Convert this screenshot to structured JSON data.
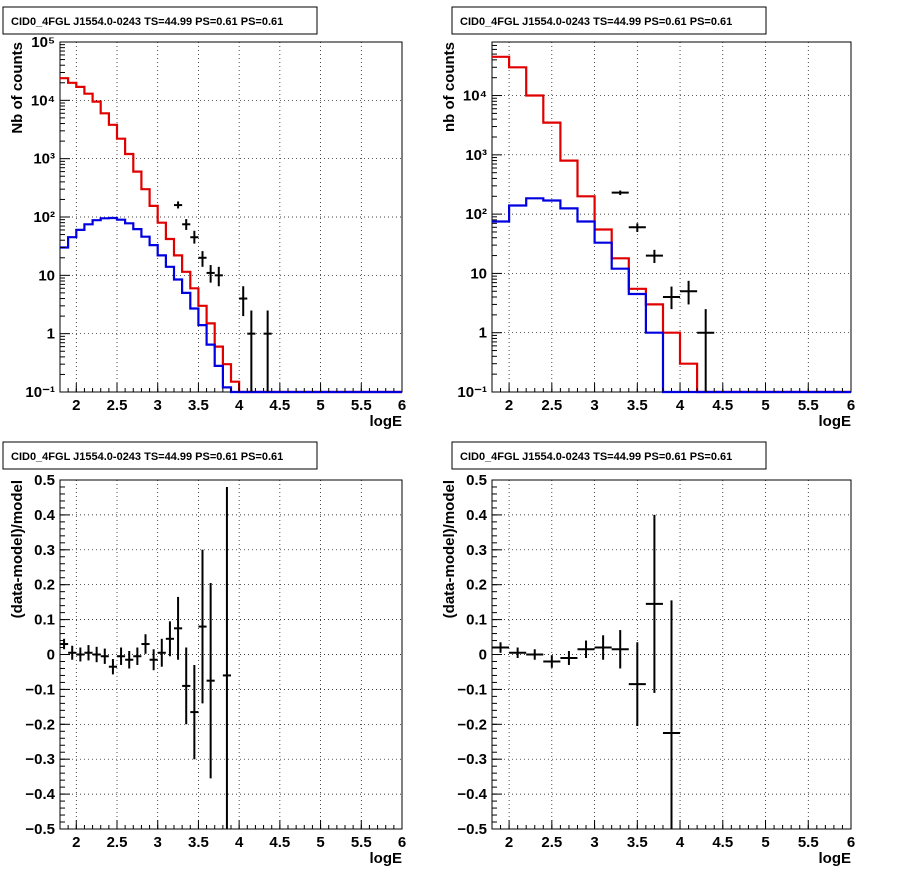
{
  "chart_data": [
    {
      "type": "histogram",
      "title": "CID0_4FGL J1554.0-0243 TS=44.99 PS=0.61 PS=0.61",
      "xlabel": "logE",
      "ylabel": "Nb of counts",
      "xlim": [
        1.8,
        6.0
      ],
      "ylim": [
        0.1,
        100000
      ],
      "yscale": "log",
      "grid": true,
      "x_ticks": [
        "2",
        "2.5",
        "3",
        "3.5",
        "4",
        "4.5",
        "5",
        "5.5",
        "6"
      ],
      "y_ticks": [
        "10⁻¹",
        "1",
        "10",
        "10²",
        "10³",
        "10⁴",
        "10⁵"
      ],
      "bin_edges": [
        1.8,
        1.9,
        2.0,
        2.1,
        2.2,
        2.3,
        2.4,
        2.5,
        2.6,
        2.7,
        2.8,
        2.9,
        3.0,
        3.1,
        3.2,
        3.3,
        3.4,
        3.5,
        3.6,
        3.7,
        3.8,
        3.9,
        4.0,
        4.1,
        4.2,
        4.3,
        4.4,
        4.5,
        4.6,
        4.7,
        4.8,
        4.9,
        5.0,
        5.1,
        5.2,
        5.3,
        5.4,
        5.5,
        5.6,
        5.7,
        5.8,
        5.9,
        6.0
      ],
      "series": [
        {
          "color": "#e00000",
          "values": [
            24000,
            20000,
            17000,
            13000,
            9500,
            6000,
            3800,
            2200,
            1200,
            600,
            300,
            155,
            80,
            42,
            22,
            11.5,
            6,
            3,
            1.5,
            0.6,
            0.3,
            0.15,
            0.1,
            0.1,
            0.1,
            0.1,
            0.1,
            0.1,
            0.1,
            0.1,
            0.1,
            0.1,
            0.1,
            0.1,
            0.1,
            0.1,
            0.1,
            0.1,
            0.1,
            0.1,
            0.1,
            0.1
          ]
        },
        {
          "color": "#0000e0",
          "values": [
            30,
            45,
            60,
            75,
            88,
            95,
            96,
            90,
            78,
            62,
            46,
            33,
            22,
            14,
            8.5,
            5,
            2.7,
            1.4,
            0.65,
            0.28,
            0.12,
            0.06,
            0.1,
            0.1,
            0.1,
            0.1,
            0.1,
            0.1,
            0.1,
            0.1,
            0.1,
            0.1,
            0.1,
            0.1,
            0.1,
            0.1,
            0.1,
            0.1,
            0.1,
            0.1,
            0.1,
            0.1
          ]
        }
      ],
      "data_points": [
        {
          "x": 3.25,
          "y": 160,
          "ylo": 140,
          "yhi": 185
        },
        {
          "x": 3.35,
          "y": 75,
          "ylo": 60,
          "yhi": 92
        },
        {
          "x": 3.45,
          "y": 45,
          "ylo": 35,
          "yhi": 58
        },
        {
          "x": 3.55,
          "y": 20,
          "ylo": 14,
          "yhi": 26
        },
        {
          "x": 3.65,
          "y": 11,
          "ylo": 7.5,
          "yhi": 15
        },
        {
          "x": 3.75,
          "y": 10,
          "ylo": 6.5,
          "yhi": 14
        },
        {
          "x": 4.05,
          "y": 4,
          "ylo": 2,
          "yhi": 6.5
        },
        {
          "x": 4.15,
          "y": 1,
          "ylo": 0.1,
          "yhi": 2.5
        },
        {
          "x": 4.35,
          "y": 1,
          "ylo": 0.1,
          "yhi": 2.5
        }
      ]
    },
    {
      "type": "histogram",
      "title": "CID0_4FGL J1554.0-0243 TS=44.99 PS=0.61 PS=0.61",
      "xlabel": "logE",
      "ylabel": "nb of counts",
      "xlim": [
        1.8,
        6.0
      ],
      "ylim": [
        0.1,
        80000
      ],
      "yscale": "log",
      "grid": true,
      "x_ticks": [
        "2",
        "2.5",
        "3",
        "3.5",
        "4",
        "4.5",
        "5",
        "5.5",
        "6"
      ],
      "y_ticks": [
        "10⁻¹",
        "1",
        "10",
        "10²",
        "10³",
        "10⁴"
      ],
      "bin_edges": [
        1.8,
        2.0,
        2.2,
        2.4,
        2.6,
        2.8,
        3.0,
        3.2,
        3.4,
        3.6,
        3.8,
        4.0,
        4.2,
        4.4,
        4.6,
        4.8,
        5.0,
        5.2,
        5.4,
        5.6,
        5.8,
        6.0
      ],
      "series": [
        {
          "color": "#e00000",
          "values": [
            45000,
            30000,
            10000,
            3500,
            800,
            200,
            55,
            18,
            5.5,
            3,
            1,
            0.3,
            0.1,
            0.1,
            0.1,
            0.1,
            0.1,
            0.1,
            0.1,
            0.1,
            0.1
          ]
        },
        {
          "color": "#0000e0",
          "values": [
            75,
            140,
            185,
            170,
            125,
            75,
            33,
            12,
            4.5,
            1.0,
            0.1,
            0.1,
            0.1,
            0.1,
            0.1,
            0.1,
            0.1,
            0.1,
            0.1,
            0.1,
            0.1
          ]
        }
      ],
      "data_points": [
        {
          "x": 3.3,
          "y": 230,
          "ylo": 210,
          "yhi": 250
        },
        {
          "x": 3.5,
          "y": 60,
          "ylo": 50,
          "yhi": 70
        },
        {
          "x": 3.7,
          "y": 20,
          "ylo": 15,
          "yhi": 25
        },
        {
          "x": 3.9,
          "y": 4,
          "ylo": 2.5,
          "yhi": 6
        },
        {
          "x": 4.1,
          "y": 5,
          "ylo": 3,
          "yhi": 7.5
        },
        {
          "x": 4.3,
          "y": 1,
          "ylo": 0.1,
          "yhi": 2.5
        }
      ]
    },
    {
      "type": "scatter",
      "title": "CID0_4FGL J1554.0-0243 TS=44.99 PS=0.61 PS=0.61",
      "xlabel": "logE",
      "ylabel": "(data-model)/model",
      "xlim": [
        1.8,
        6.0
      ],
      "ylim": [
        -0.5,
        0.5
      ],
      "grid": true,
      "x_ticks": [
        "2",
        "2.5",
        "3",
        "3.5",
        "4",
        "4.5",
        "5",
        "5.5",
        "6"
      ],
      "y_ticks": [
        "−0.5",
        "−0.4",
        "−0.3",
        "−0.2",
        "−0.1",
        "0",
        "0.1",
        "0.2",
        "0.3",
        "0.4",
        "0.5"
      ],
      "xerr": 0.05,
      "points": [
        {
          "x": 1.85,
          "y": 0.03,
          "err": 0.015
        },
        {
          "x": 1.95,
          "y": 0.005,
          "err": 0.02
        },
        {
          "x": 2.05,
          "y": 0.0,
          "err": 0.02
        },
        {
          "x": 2.15,
          "y": 0.005,
          "err": 0.022
        },
        {
          "x": 2.25,
          "y": 0.0,
          "err": 0.022
        },
        {
          "x": 2.35,
          "y": -0.005,
          "err": 0.022
        },
        {
          "x": 2.45,
          "y": -0.035,
          "err": 0.022
        },
        {
          "x": 2.55,
          "y": -0.005,
          "err": 0.025
        },
        {
          "x": 2.65,
          "y": -0.015,
          "err": 0.025
        },
        {
          "x": 2.75,
          "y": -0.005,
          "err": 0.025
        },
        {
          "x": 2.85,
          "y": 0.03,
          "err": 0.028
        },
        {
          "x": 2.95,
          "y": -0.015,
          "err": 0.03
        },
        {
          "x": 3.05,
          "y": 0.005,
          "err": 0.04
        },
        {
          "x": 3.15,
          "y": 0.045,
          "err": 0.05
        },
        {
          "x": 3.25,
          "y": 0.075,
          "err": 0.09
        },
        {
          "x": 3.35,
          "y": -0.09,
          "err": 0.11
        },
        {
          "x": 3.45,
          "y": -0.165,
          "err": 0.135
        },
        {
          "x": 3.55,
          "y": 0.08,
          "err": 0.22
        },
        {
          "x": 3.65,
          "y": -0.075,
          "err": 0.28
        },
        {
          "x": 3.85,
          "y": -0.06,
          "err": 0.54
        }
      ]
    },
    {
      "type": "scatter",
      "title": "CID0_4FGL J1554.0-0243 TS=44.99 PS=0.61 PS=0.61",
      "xlabel": "logE",
      "ylabel": "(data-model)/model",
      "xlim": [
        1.8,
        6.0
      ],
      "ylim": [
        -0.5,
        0.5
      ],
      "grid": true,
      "x_ticks": [
        "2",
        "2.5",
        "3",
        "3.5",
        "4",
        "4.5",
        "5",
        "5.5",
        "6"
      ],
      "y_ticks": [
        "−0.5",
        "−0.4",
        "−0.3",
        "−0.2",
        "−0.1",
        "0",
        "0.1",
        "0.2",
        "0.3",
        "0.4",
        "0.5"
      ],
      "xerr": 0.1,
      "points": [
        {
          "x": 1.9,
          "y": 0.02,
          "err": 0.015
        },
        {
          "x": 2.1,
          "y": 0.005,
          "err": 0.015
        },
        {
          "x": 2.3,
          "y": 0.0,
          "err": 0.015
        },
        {
          "x": 2.5,
          "y": -0.02,
          "err": 0.018
        },
        {
          "x": 2.7,
          "y": -0.01,
          "err": 0.02
        },
        {
          "x": 2.9,
          "y": 0.015,
          "err": 0.025
        },
        {
          "x": 3.1,
          "y": 0.02,
          "err": 0.035
        },
        {
          "x": 3.3,
          "y": 0.015,
          "err": 0.055
        },
        {
          "x": 3.5,
          "y": -0.085,
          "err": 0.12
        },
        {
          "x": 3.7,
          "y": 0.145,
          "err": 0.255
        },
        {
          "x": 3.9,
          "y": -0.225,
          "err": 0.38
        }
      ]
    }
  ]
}
